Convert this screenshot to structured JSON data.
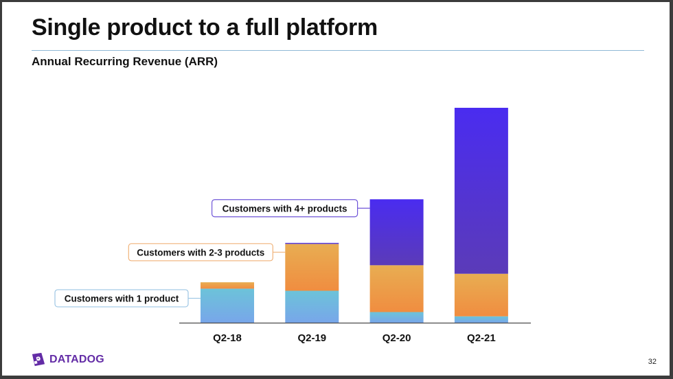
{
  "slide": {
    "title": "Single product to a full platform",
    "subtitle": "Annual Recurring Revenue (ARR)",
    "logo_text": "DATADOG",
    "page_number": "32"
  },
  "colors": {
    "one_product": "#6fb1e2",
    "two_three_products": "#ec9d4a",
    "four_plus_products": "#5036dc",
    "axis": "#4a4a4a",
    "brand": "#632ca6"
  },
  "chart_data": {
    "type": "bar",
    "stacked": true,
    "title": "Annual Recurring Revenue (ARR)",
    "xlabel": "",
    "ylabel": "",
    "categories": [
      "Q2-18",
      "Q2-19",
      "Q2-20",
      "Q2-21"
    ],
    "series": [
      {
        "name": "Customers with 1 product",
        "values": [
          16,
          15,
          5,
          3
        ]
      },
      {
        "name": "Customers with 2-3 products",
        "values": [
          3,
          22,
          22,
          20
        ]
      },
      {
        "name": "Customers with 4+ products",
        "values": [
          0,
          0.5,
          31,
          78
        ]
      }
    ],
    "ylim": [
      0,
      101
    ],
    "grid": false,
    "legend": "inline-callouts"
  }
}
